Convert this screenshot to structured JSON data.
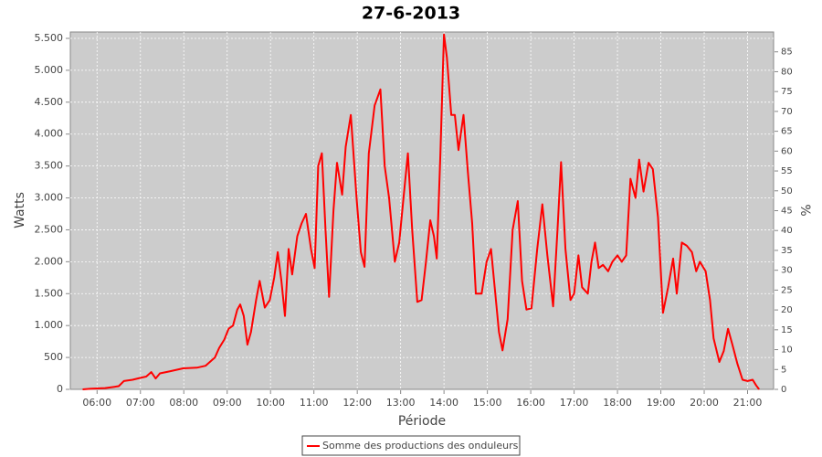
{
  "chart_data": {
    "type": "line",
    "title": "27-6-2013",
    "x_label": "Période",
    "y_label": "Watts",
    "y2_label": "%",
    "x": [
      "05:40",
      "05:52",
      "06:11",
      "06:24",
      "06:30",
      "06:37",
      "06:49",
      "07:00",
      "07:08",
      "07:15",
      "07:21",
      "07:27",
      "07:40",
      "07:59",
      "08:18",
      "08:30",
      "08:43",
      "08:49",
      "08:56",
      "09:02",
      "09:08",
      "09:14",
      "09:18",
      "09:23",
      "09:28",
      "09:33",
      "09:40",
      "09:45",
      "09:52",
      "09:59",
      "10:05",
      "10:10",
      "10:15",
      "10:20",
      "10:25",
      "10:30",
      "10:37",
      "10:43",
      "10:49",
      "10:56",
      "11:01",
      "11:06",
      "11:11",
      "11:16",
      "11:21",
      "11:27",
      "11:32",
      "11:39",
      "11:44",
      "11:51",
      "11:59",
      "12:05",
      "12:10",
      "12:16",
      "12:24",
      "12:32",
      "12:38",
      "12:44",
      "12:52",
      "12:58",
      "13:04",
      "13:10",
      "13:16",
      "13:23",
      "13:29",
      "13:35",
      "13:41",
      "13:46",
      "13:50",
      "13:55",
      "14:00",
      "14:04",
      "14:10",
      "14:15",
      "14:20",
      "14:27",
      "14:33",
      "14:39",
      "14:44",
      "14:52",
      "14:59",
      "15:05",
      "15:11",
      "15:16",
      "15:21",
      "15:28",
      "15:35",
      "15:42",
      "15:48",
      "15:54",
      "16:01",
      "16:09",
      "16:16",
      "16:23",
      "16:31",
      "16:37",
      "16:42",
      "16:48",
      "16:55",
      "17:00",
      "17:06",
      "17:11",
      "17:19",
      "17:24",
      "17:29",
      "17:34",
      "17:40",
      "17:47",
      "17:53",
      "18:00",
      "18:06",
      "18:12",
      "18:18",
      "18:25",
      "18:30",
      "18:36",
      "18:43",
      "18:49",
      "18:56",
      "19:03",
      "19:10",
      "19:17",
      "19:22",
      "19:29",
      "19:36",
      "19:43",
      "19:49",
      "19:54",
      "20:02",
      "20:08",
      "20:13",
      "20:21",
      "20:27",
      "20:33",
      "20:39",
      "20:46",
      "20:53",
      "21:00",
      "21:07",
      "21:12",
      "21:16"
    ],
    "series": [
      {
        "name": "Somme des productions des onduleurs",
        "color": "#ff0000",
        "values": [
          0,
          10,
          20,
          40,
          50,
          130,
          150,
          180,
          200,
          270,
          170,
          250,
          280,
          330,
          340,
          370,
          500,
          650,
          780,
          950,
          1000,
          1250,
          1330,
          1150,
          700,
          900,
          1400,
          1700,
          1280,
          1400,
          1750,
          2150,
          1700,
          1150,
          2200,
          1800,
          2400,
          2600,
          2750,
          2200,
          1900,
          3500,
          3700,
          2500,
          1450,
          2800,
          3550,
          3050,
          3800,
          4300,
          3000,
          2150,
          1920,
          3700,
          4450,
          4700,
          3500,
          3000,
          2000,
          2300,
          3000,
          3700,
          2500,
          1370,
          1400,
          2000,
          2650,
          2400,
          2050,
          3700,
          5560,
          5200,
          4300,
          4300,
          3750,
          4300,
          3400,
          2600,
          1500,
          1500,
          2000,
          2200,
          1500,
          900,
          610,
          1100,
          2500,
          2950,
          1700,
          1250,
          1270,
          2200,
          2900,
          2100,
          1300,
          2500,
          3560,
          2200,
          1400,
          1500,
          2100,
          1600,
          1500,
          2000,
          2300,
          1900,
          1950,
          1850,
          2000,
          2100,
          2000,
          2100,
          3300,
          3000,
          3600,
          3100,
          3550,
          3450,
          2700,
          1200,
          1600,
          2050,
          1500,
          2300,
          2250,
          2150,
          1850,
          2000,
          1850,
          1400,
          800,
          430,
          600,
          950,
          700,
          400,
          150,
          130,
          150,
          60,
          0
        ]
      }
    ],
    "xlim": [
      "05:23",
      "21:36"
    ],
    "xticks": [
      "06:00",
      "07:00",
      "08:00",
      "09:00",
      "10:00",
      "11:00",
      "12:00",
      "13:00",
      "14:00",
      "15:00",
      "16:00",
      "17:00",
      "18:00",
      "19:00",
      "20:00",
      "21:00"
    ],
    "ylim": [
      0,
      5600
    ],
    "yticks": [
      0,
      500,
      {
        "value": 1000,
        "label": "1.000"
      },
      {
        "value": 1500,
        "label": "1.500"
      },
      {
        "value": 2000,
        "label": "2.000"
      },
      {
        "value": 2500,
        "label": "2.500"
      },
      {
        "value": 3000,
        "label": "3.000"
      },
      {
        "value": 3500,
        "label": "3.500"
      },
      {
        "value": 4000,
        "label": "4.000"
      },
      {
        "value": 4500,
        "label": "4.500"
      },
      {
        "value": 5000,
        "label": "5.000"
      },
      {
        "value": 5500,
        "label": "5.500"
      }
    ],
    "y2lim": [
      0,
      90
    ],
    "y2ticks": [
      0,
      5,
      10,
      15,
      20,
      25,
      30,
      35,
      40,
      45,
      50,
      55,
      60,
      65,
      70,
      75,
      80,
      85
    ],
    "grid": true,
    "legend": "bottom"
  }
}
